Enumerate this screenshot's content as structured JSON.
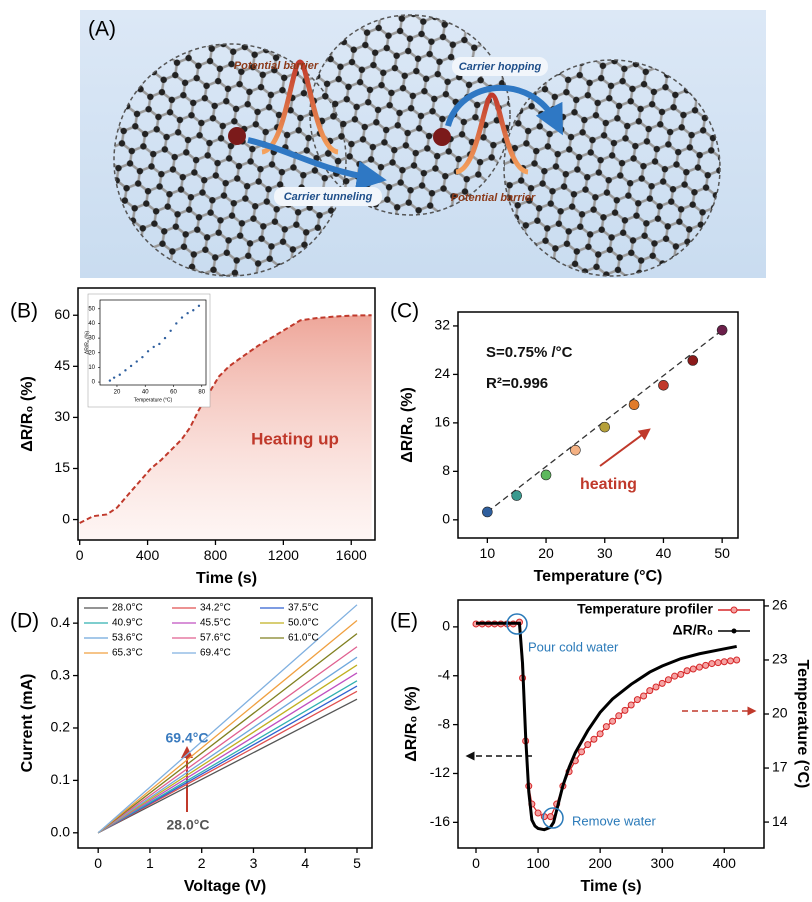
{
  "figure_a": {
    "label": "(A)",
    "texts": [
      "Potential barrier",
      "Carrier hopping",
      "Carrier tunneling",
      "Potential barrier"
    ]
  },
  "chart_data": [
    {
      "type": "line",
      "label": "(B)",
      "xlabel": "Time (s)",
      "ylabel": "ΔR/R₀ (%)",
      "x": [
        0,
        40,
        80,
        160,
        220,
        280,
        350,
        420,
        480,
        550,
        600,
        650,
        700,
        760,
        820,
        880,
        950,
        1050,
        1150,
        1250,
        1300,
        1400,
        1500,
        1600,
        1720
      ],
      "values": [
        -1,
        0,
        1,
        1.5,
        3.5,
        7,
        11,
        15,
        17.5,
        21,
        23.5,
        27,
        32,
        37,
        42,
        45,
        47.5,
        51,
        54,
        57,
        58.5,
        59.2,
        59.6,
        59.9,
        60
      ],
      "color": "#c0392b",
      "linestyle": "dashed",
      "fill": true,
      "xlim": [
        -10,
        1740
      ],
      "ylim": [
        -6,
        68
      ],
      "xticks": [
        0,
        400,
        800,
        1200,
        1600
      ],
      "yticks": [
        0,
        15,
        30,
        45,
        60
      ],
      "annotations": [
        {
          "text": "Heating up",
          "color": "#c0392b"
        }
      ]
    },
    {
      "type": "scatter",
      "xlabel": "Temperature (°C)",
      "ylabel": "ΔR/R₀ (%)",
      "x": [
        15,
        18,
        22,
        26,
        30,
        34,
        38,
        42,
        46,
        50,
        54,
        58,
        62,
        66,
        70,
        74,
        78
      ],
      "values": [
        1,
        3,
        5,
        8,
        11,
        14,
        17,
        21,
        24,
        26,
        30,
        35,
        40,
        44,
        47,
        49,
        52
      ],
      "color": "#2f5f9e",
      "xlim": [
        8,
        83
      ],
      "ylim": [
        -2,
        56
      ],
      "xticks": [
        20,
        40,
        60,
        80
      ],
      "yticks": [
        0,
        10,
        20,
        30,
        40,
        50
      ]
    },
    {
      "type": "scatter",
      "label": "(C)",
      "xlabel": "Temperature (°C)",
      "ylabel": "ΔR/R₀ (%)",
      "x": [
        10,
        15,
        20,
        25,
        30,
        35,
        40,
        45,
        50
      ],
      "values": [
        1.3,
        4,
        7.4,
        11.5,
        15.3,
        19,
        22.2,
        26.3,
        31.3
      ],
      "colors": [
        "#2f5f9e",
        "#3a9a8f",
        "#5cb85c",
        "#f4b183",
        "#b5a03a",
        "#e07b2a",
        "#c0392b",
        "#8b1a1a",
        "#6b1f4a"
      ],
      "fit": {
        "x": [
          10,
          50
        ],
        "values": [
          1.3,
          31.3
        ]
      },
      "xlim": [
        5,
        52.7
      ],
      "ylim": [
        -3,
        34.3
      ],
      "xticks": [
        10,
        20,
        30,
        40,
        50
      ],
      "yticks": [
        0,
        8,
        16,
        24,
        32
      ],
      "annotations": [
        {
          "text": "S=0.75% /°C",
          "color": "#111111"
        },
        {
          "text": "R²=0.996",
          "color": "#111111"
        },
        {
          "text": "heating",
          "color": "#c0392b"
        }
      ]
    },
    {
      "type": "line",
      "label": "(D)",
      "xlabel": "Voltage (V)",
      "ylabel": "Current (mA)",
      "legend": "upper left",
      "legend_columns": 3,
      "x": [
        0,
        5
      ],
      "series": [
        {
          "name": "28.0°C",
          "color": "#555555",
          "values": [
            0,
            0.255
          ]
        },
        {
          "name": "34.2°C",
          "color": "#e05050",
          "values": [
            0,
            0.27
          ]
        },
        {
          "name": "37.5°C",
          "color": "#3060d0",
          "values": [
            0,
            0.28
          ]
        },
        {
          "name": "40.9°C",
          "color": "#30b0b0",
          "values": [
            0,
            0.29
          ]
        },
        {
          "name": "45.5°C",
          "color": "#c050c0",
          "values": [
            0,
            0.305
          ]
        },
        {
          "name": "50.0°C",
          "color": "#c0b020",
          "values": [
            0,
            0.32
          ]
        },
        {
          "name": "53.6°C",
          "color": "#6fa8dc",
          "values": [
            0,
            0.335
          ]
        },
        {
          "name": "57.6°C",
          "color": "#e06090",
          "values": [
            0,
            0.355
          ]
        },
        {
          "name": "61.0°C",
          "color": "#808020",
          "values": [
            0,
            0.38
          ]
        },
        {
          "name": "65.3°C",
          "color": "#f0a040",
          "values": [
            0,
            0.405
          ]
        },
        {
          "name": "69.4°C",
          "color": "#80b0e0",
          "values": [
            0,
            0.435
          ]
        }
      ],
      "xlim": [
        -0.39,
        5.29
      ],
      "ylim": [
        -0.029,
        0.448
      ],
      "xticks": [
        0,
        1,
        2,
        3,
        4,
        5
      ],
      "yticks": [
        {
          "value": 0,
          "label": "0.0"
        },
        0.1,
        0.2,
        0.3,
        0.4
      ],
      "annotations": [
        {
          "text": "69.4°C",
          "color": "#3a7bbf"
        },
        {
          "text": "28.0°C",
          "color": "#555555"
        }
      ]
    },
    {
      "type": "line",
      "label": "(E)",
      "xlabel": "Time (s)",
      "ylabel": "ΔR/R₀ (%)",
      "y2label": "Temperature (°C)",
      "legend": "upper right",
      "series": [
        {
          "name": "Temperature profiler",
          "color": "#d62728",
          "axis": "y2",
          "markers": true,
          "x": [
            0,
            10,
            20,
            30,
            40,
            50,
            60,
            70,
            75,
            80,
            85,
            90,
            100,
            110,
            120,
            130,
            140,
            150,
            160,
            170,
            180,
            190,
            200,
            210,
            220,
            230,
            240,
            250,
            260,
            270,
            280,
            290,
            300,
            310,
            320,
            330,
            340,
            350,
            360,
            370,
            380,
            390,
            400,
            410,
            420
          ],
          "values": [
            25.0,
            25.0,
            25.0,
            25.0,
            25.0,
            25.0,
            25.0,
            25.1,
            22.0,
            18.5,
            16.0,
            15.0,
            14.5,
            14.3,
            14.3,
            15.0,
            16.0,
            16.8,
            17.4,
            17.9,
            18.3,
            18.6,
            18.9,
            19.3,
            19.6,
            19.9,
            20.2,
            20.5,
            20.8,
            21.0,
            21.3,
            21.5,
            21.7,
            21.9,
            22.1,
            22.2,
            22.4,
            22.5,
            22.6,
            22.7,
            22.8,
            22.85,
            22.9,
            22.95,
            23.0
          ]
        },
        {
          "name": "ΔR/R₀",
          "color": "#000000",
          "linewidth": 3,
          "x": [
            0,
            20,
            40,
            60,
            70,
            75,
            80,
            85,
            90,
            95,
            100,
            110,
            120,
            125,
            130,
            140,
            150,
            160,
            180,
            200,
            220,
            250,
            280,
            300,
            330,
            360,
            390,
            420
          ],
          "values": [
            0.3,
            0.3,
            0.3,
            0.3,
            0.3,
            -3,
            -9,
            -13.5,
            -15.8,
            -16.3,
            -16.5,
            -16.6,
            -16.4,
            -16.0,
            -15,
            -13,
            -11.5,
            -10.3,
            -8.5,
            -7,
            -5.9,
            -4.7,
            -3.7,
            -3.2,
            -2.6,
            -2.2,
            -1.9,
            -1.6
          ]
        }
      ],
      "xlim": [
        -29,
        464
      ],
      "ylim": [
        -18.1,
        2.2
      ],
      "y2lim": [
        12.56,
        26.33
      ],
      "xticks": [
        0,
        100,
        200,
        300,
        400
      ],
      "yticks": [
        0,
        -4,
        -8,
        -12,
        -16
      ],
      "y2ticks": [
        14,
        17,
        20,
        23,
        26
      ],
      "annotations": [
        {
          "text": "Pour cold water",
          "color": "#2a7ab9"
        },
        {
          "text": "Remove water",
          "color": "#2a7ab9"
        }
      ]
    }
  ]
}
